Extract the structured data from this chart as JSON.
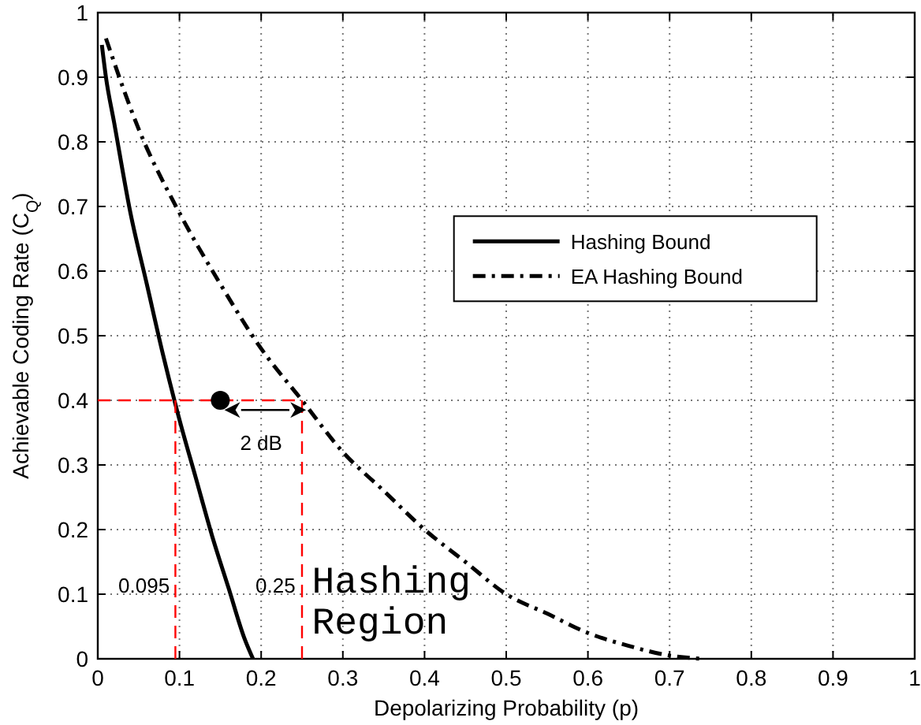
{
  "chart_data": {
    "type": "line",
    "xlabel": "Depolarizing Probability (p)",
    "ylabel": "Achievable Coding Rate (C$_{Q}$)",
    "xlim": [
      0,
      1
    ],
    "ylim": [
      0,
      1
    ],
    "xticks": [
      0,
      0.1,
      0.2,
      0.3,
      0.4,
      0.5,
      0.6,
      0.7,
      0.8,
      0.9,
      1
    ],
    "yticks": [
      0,
      0.1,
      0.2,
      0.3,
      0.4,
      0.5,
      0.6,
      0.7,
      0.8,
      0.9,
      1
    ],
    "grid": true,
    "legend": "right",
    "series": [
      {
        "name": "Hashing Bound",
        "color": "#000000",
        "line_style": "solid",
        "x": [
          0.005,
          0.01,
          0.02,
          0.04,
          0.06,
          0.08,
          0.1,
          0.12,
          0.14,
          0.16,
          0.18,
          0.19
        ],
        "values": [
          0.95,
          0.9,
          0.83,
          0.69,
          0.58,
          0.47,
          0.37,
          0.28,
          0.19,
          0.11,
          0.03,
          0
        ]
      },
      {
        "name": "EA Hashing Bound",
        "color": "#000000",
        "line_style": "dashdot",
        "x": [
          0.01,
          0.05,
          0.1,
          0.15,
          0.2,
          0.25,
          0.3,
          0.35,
          0.4,
          0.45,
          0.5,
          0.55,
          0.6,
          0.65,
          0.7,
          0.74
        ],
        "values": [
          0.96,
          0.82,
          0.69,
          0.58,
          0.48,
          0.4,
          0.32,
          0.26,
          0.2,
          0.15,
          0.1,
          0.07,
          0.04,
          0.02,
          0.005,
          0
        ]
      },
      {
        "type": "line",
        "color": "#ff0000",
        "line_style": "dashed",
        "x": [
          0,
          0.25
        ],
        "values": [
          0.4,
          0.4
        ]
      },
      {
        "type": "line",
        "color": "#ff0000",
        "line_style": "dashed",
        "x": [
          0.095,
          0.095
        ],
        "values": [
          0,
          0.4
        ]
      },
      {
        "type": "line",
        "color": "#ff0000",
        "line_style": "dashed",
        "x": [
          0.25,
          0.25
        ],
        "values": [
          0,
          0.4
        ]
      },
      {
        "type": "scatter",
        "color": "#000000",
        "marker": "circle",
        "x": [
          0.15
        ],
        "values": [
          0.4
        ]
      }
    ],
    "annotations": [
      "2 dB",
      "0.095",
      "0.25",
      "Hashing Region"
    ]
  }
}
